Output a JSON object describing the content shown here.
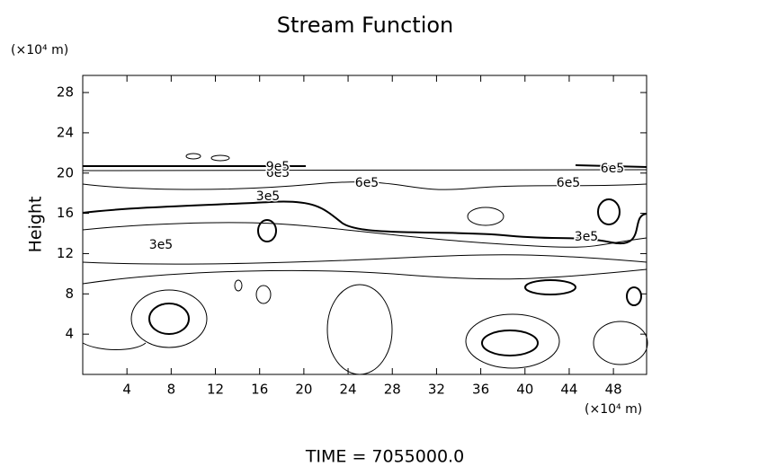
{
  "chart_data": {
    "type": "contour",
    "title": "Stream Function",
    "x_unit": "(×10⁴ m)",
    "y_unit": "(×10⁴ m)",
    "ylabel": "Height",
    "footer": "TIME = 7055000.0",
    "xlim": [
      0,
      51
    ],
    "ylim": [
      0,
      29.7
    ],
    "xticks": [
      4,
      8,
      12,
      16,
      20,
      24,
      28,
      32,
      36,
      40,
      44,
      48
    ],
    "yticks": [
      4,
      8,
      12,
      16,
      20,
      24,
      28
    ],
    "contour_labels": [
      "3e5",
      "3e5",
      "6e5",
      "6e5",
      "3e5",
      "6e5",
      "9e5",
      "6e5"
    ]
  }
}
